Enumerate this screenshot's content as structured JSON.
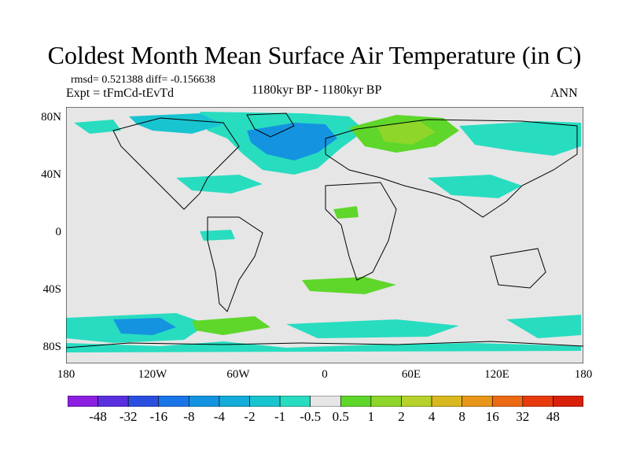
{
  "title": "Coldest Month Mean Surface Air Temperature (in C)",
  "stats": "rmsd= 0.521388 diff= -0.156638",
  "expt": "Expt = tFmCd-tEvTd",
  "period": "1180kyr BP - 1180kyr BP",
  "season": "ANN",
  "y_axis_labels": [
    "80N",
    "40N",
    "0",
    "40S",
    "80S"
  ],
  "x_axis_labels": [
    "180",
    "120W",
    "60W",
    "0",
    "60E",
    "120E",
    "180"
  ],
  "colorbar": {
    "labels": [
      "-48",
      "-32",
      "-16",
      "-8",
      "-4",
      "-2",
      "-1",
      "-0.5",
      "0.5",
      "1",
      "2",
      "4",
      "8",
      "16",
      "32",
      "48"
    ],
    "colors": [
      "#8c1fe0",
      "#5a2fe0",
      "#2a4fe0",
      "#1a76e8",
      "#1494e0",
      "#14acd8",
      "#18c4d0",
      "#28dcc0",
      "#e6e6e6",
      "#5ed62a",
      "#8ed62a",
      "#b6d22a",
      "#d8b81e",
      "#e8961a",
      "#ec6a14",
      "#e83a0c",
      "#d8200a"
    ]
  },
  "colors": {
    "land_background": "#e6e6e6",
    "coast": "#000000"
  }
}
